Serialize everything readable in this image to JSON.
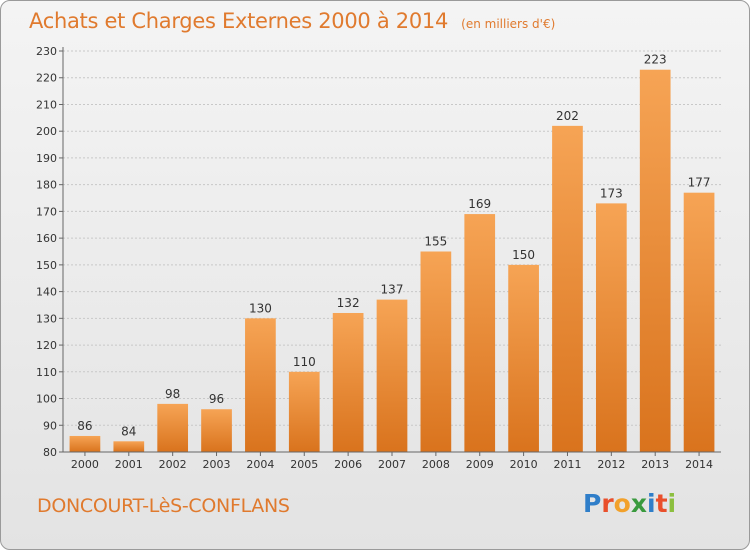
{
  "header": {
    "title": "Achats et Charges Externes 2000 à 2014",
    "unit": "(en milliers d'€)"
  },
  "footer": {
    "commune": "DONCOURT-LèS-CONFLANS",
    "logo": {
      "letters": [
        "P",
        "r",
        "o",
        "x",
        "i",
        "t",
        "i"
      ],
      "colors": [
        "#2f7ec9",
        "#e94f2b",
        "#f2a12b",
        "#3a9a3e",
        "#2f7ec9",
        "#e94f2b",
        "#8cbf3f"
      ]
    }
  },
  "colors": {
    "bar_light": "#f6a455",
    "bar_dark": "#d9731d",
    "text_accent": "#e07a2e"
  },
  "chart_data": {
    "type": "bar",
    "title": "Achats et Charges Externes 2000 à 2014",
    "subtitle": "(en milliers d'€)",
    "xlabel": "",
    "ylabel": "",
    "categories": [
      "2000",
      "2001",
      "2002",
      "2003",
      "2004",
      "2005",
      "2006",
      "2007",
      "2008",
      "2009",
      "2010",
      "2011",
      "2012",
      "2013",
      "2014"
    ],
    "values": [
      86,
      84,
      98,
      96,
      130,
      110,
      132,
      137,
      155,
      169,
      150,
      202,
      173,
      223,
      177
    ],
    "ylim": [
      80,
      230
    ],
    "yticks": [
      80,
      90,
      100,
      110,
      120,
      130,
      140,
      150,
      160,
      170,
      180,
      190,
      200,
      210,
      220,
      230
    ],
    "grid": true,
    "legend": "none"
  }
}
